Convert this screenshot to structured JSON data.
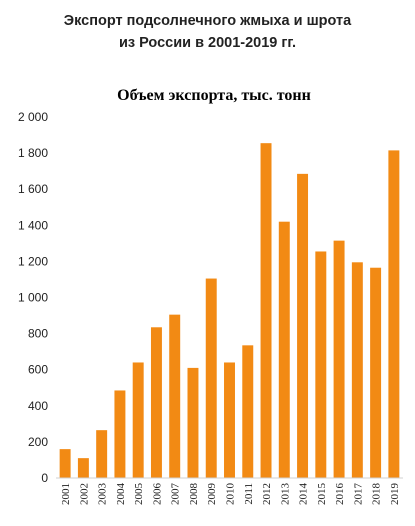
{
  "heading": {
    "line1": "Экспорт подсолнечного  жмыха и шрота",
    "line2": "из России в 2001-2019 гг."
  },
  "chart_data": {
    "type": "bar",
    "title": "Объем экспорта, тыс. тонн",
    "xlabel": "",
    "ylabel": "",
    "categories": [
      "2001",
      "2002",
      "2003",
      "2004",
      "2005",
      "2006",
      "2007",
      "2008",
      "2009",
      "2010",
      "2011",
      "2012",
      "2013",
      "2014",
      "2015",
      "2016",
      "2017",
      "2018",
      "2019"
    ],
    "values": [
      160,
      110,
      265,
      485,
      640,
      835,
      905,
      610,
      1105,
      640,
      735,
      1855,
      1420,
      1685,
      1255,
      1315,
      1195,
      1165,
      1815
    ],
    "ylim": [
      0,
      2000
    ],
    "yticks": [
      0,
      200,
      400,
      600,
      800,
      1000,
      1200,
      1400,
      1600,
      1800,
      2000
    ],
    "ytick_labels": [
      "0",
      "200",
      "400",
      "600",
      "800",
      "1 000",
      "1 200",
      "1 400",
      "1 600",
      "1 800",
      "2 000"
    ],
    "bar_color": "#F28A14",
    "grid": false,
    "legend": false
  }
}
